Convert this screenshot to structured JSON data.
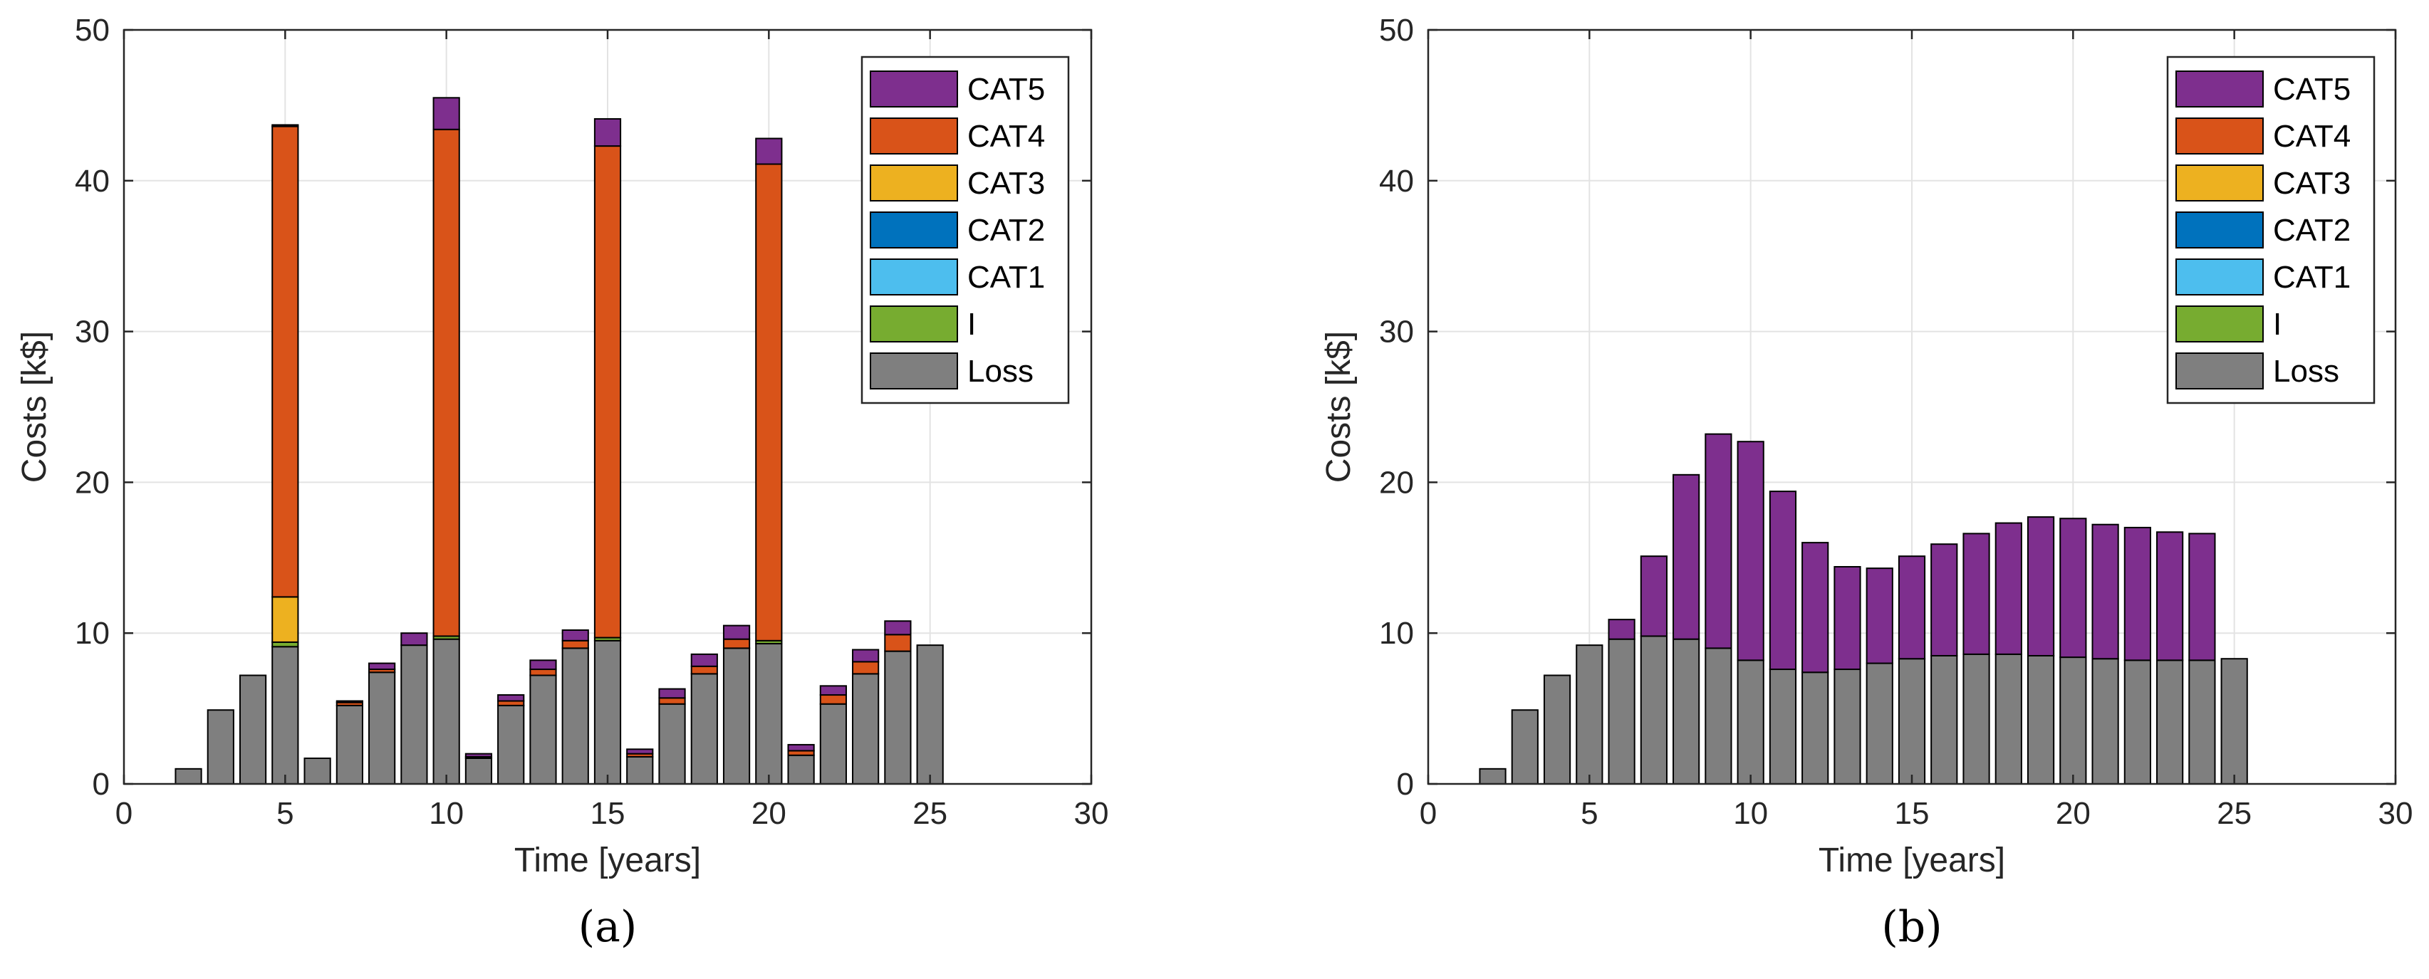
{
  "chart_data": [
    {
      "type": "bar",
      "stacked": true,
      "panel_label": "(a)",
      "xlabel": "Time [years]",
      "ylabel": "Costs [k$]",
      "xlim": [
        0,
        30
      ],
      "ylim": [
        0,
        50
      ],
      "xticks": [
        "0",
        "5",
        "10",
        "15",
        "20",
        "25",
        "30"
      ],
      "yticks": [
        "0",
        "10",
        "20",
        "30",
        "40",
        "50"
      ],
      "grid": true,
      "legend_position": "top-right",
      "x": [
        2,
        3,
        4,
        5,
        6,
        7,
        8,
        9,
        10,
        11,
        12,
        13,
        14,
        15,
        16,
        17,
        18,
        19,
        20,
        21,
        22,
        23,
        24,
        25
      ],
      "series": [
        {
          "name": "Loss",
          "color": "#7f7f7f",
          "values": [
            1.0,
            4.9,
            7.2,
            9.1,
            1.7,
            5.2,
            7.4,
            9.2,
            9.6,
            1.7,
            5.2,
            7.2,
            9.0,
            9.5,
            1.8,
            5.3,
            7.3,
            9.0,
            9.3,
            1.9,
            5.3,
            7.3,
            8.8,
            9.2
          ]
        },
        {
          "name": "I",
          "color": "#77ac30",
          "values": [
            0,
            0,
            0,
            0.3,
            0,
            0,
            0,
            0,
            0.2,
            0,
            0,
            0,
            0,
            0.2,
            0,
            0,
            0,
            0,
            0.2,
            0,
            0,
            0,
            0,
            0
          ]
        },
        {
          "name": "CAT1",
          "color": "#4dbeee",
          "values": [
            0,
            0,
            0,
            0,
            0,
            0,
            0,
            0,
            0,
            0,
            0,
            0,
            0,
            0,
            0,
            0,
            0,
            0,
            0,
            0,
            0,
            0,
            0,
            0
          ]
        },
        {
          "name": "CAT2",
          "color": "#0072bd",
          "values": [
            0,
            0,
            0,
            0,
            0,
            0,
            0,
            0,
            0,
            0,
            0,
            0,
            0,
            0,
            0,
            0,
            0,
            0,
            0,
            0,
            0,
            0,
            0,
            0
          ]
        },
        {
          "name": "CAT3",
          "color": "#edb120",
          "values": [
            0,
            0,
            0,
            3.0,
            0,
            0,
            0,
            0,
            0,
            0,
            0,
            0,
            0,
            0,
            0,
            0,
            0,
            0,
            0,
            0,
            0,
            0,
            0,
            0
          ]
        },
        {
          "name": "CAT4",
          "color": "#d95319",
          "values": [
            0,
            0,
            0,
            31.2,
            0,
            0.2,
            0.2,
            0,
            33.6,
            0.1,
            0.3,
            0.4,
            0.5,
            32.6,
            0.2,
            0.4,
            0.5,
            0.6,
            31.6,
            0.3,
            0.6,
            0.8,
            1.1,
            0
          ]
        },
        {
          "name": "CAT5",
          "color": "#7e2f8e",
          "values": [
            0,
            0,
            0,
            0.1,
            0,
            0.1,
            0.4,
            0.8,
            2.1,
            0.2,
            0.4,
            0.6,
            0.7,
            1.8,
            0.3,
            0.6,
            0.8,
            0.9,
            1.7,
            0.4,
            0.6,
            0.8,
            0.9,
            0
          ]
        }
      ]
    },
    {
      "type": "bar",
      "stacked": true,
      "panel_label": "(b)",
      "xlabel": "Time [years]",
      "ylabel": "Costs [k$]",
      "xlim": [
        0,
        30
      ],
      "ylim": [
        0,
        50
      ],
      "xticks": [
        "0",
        "5",
        "10",
        "15",
        "20",
        "25",
        "30"
      ],
      "yticks": [
        "0",
        "10",
        "20",
        "30",
        "40",
        "50"
      ],
      "grid": true,
      "legend_position": "top-right",
      "x": [
        2,
        3,
        4,
        5,
        6,
        7,
        8,
        9,
        10,
        11,
        12,
        13,
        14,
        15,
        16,
        17,
        18,
        19,
        20,
        21,
        22,
        23,
        24,
        25
      ],
      "series": [
        {
          "name": "Loss",
          "color": "#7f7f7f",
          "values": [
            1.0,
            4.9,
            7.2,
            9.2,
            9.6,
            9.8,
            9.6,
            9.0,
            8.2,
            7.6,
            7.4,
            7.6,
            8.0,
            8.3,
            8.5,
            8.6,
            8.6,
            8.5,
            8.4,
            8.3,
            8.2,
            8.2,
            8.2,
            8.3
          ]
        },
        {
          "name": "I",
          "color": "#77ac30",
          "values": [
            0,
            0,
            0,
            0,
            0,
            0,
            0,
            0,
            0,
            0,
            0,
            0,
            0,
            0,
            0,
            0,
            0,
            0,
            0,
            0,
            0,
            0,
            0,
            0
          ]
        },
        {
          "name": "CAT1",
          "color": "#4dbeee",
          "values": [
            0,
            0,
            0,
            0,
            0,
            0,
            0,
            0,
            0,
            0,
            0,
            0,
            0,
            0,
            0,
            0,
            0,
            0,
            0,
            0,
            0,
            0,
            0,
            0
          ]
        },
        {
          "name": "CAT2",
          "color": "#0072bd",
          "values": [
            0,
            0,
            0,
            0,
            0,
            0,
            0,
            0,
            0,
            0,
            0,
            0,
            0,
            0,
            0,
            0,
            0,
            0,
            0,
            0,
            0,
            0,
            0,
            0
          ]
        },
        {
          "name": "CAT3",
          "color": "#edb120",
          "values": [
            0,
            0,
            0,
            0,
            0,
            0,
            0,
            0,
            0,
            0,
            0,
            0,
            0,
            0,
            0,
            0,
            0,
            0,
            0,
            0,
            0,
            0,
            0,
            0
          ]
        },
        {
          "name": "CAT4",
          "color": "#d95319",
          "values": [
            0,
            0,
            0,
            0,
            0,
            0,
            0,
            0,
            0,
            0,
            0,
            0,
            0,
            0,
            0,
            0,
            0,
            0,
            0,
            0,
            0,
            0,
            0,
            0
          ]
        },
        {
          "name": "CAT5",
          "color": "#7e2f8e",
          "values": [
            0,
            0,
            0,
            0,
            1.3,
            5.3,
            10.9,
            14.2,
            14.5,
            11.8,
            8.6,
            6.8,
            6.3,
            6.8,
            7.4,
            8.0,
            8.7,
            9.2,
            9.2,
            8.9,
            8.8,
            8.5,
            8.4,
            0
          ]
        }
      ]
    }
  ]
}
